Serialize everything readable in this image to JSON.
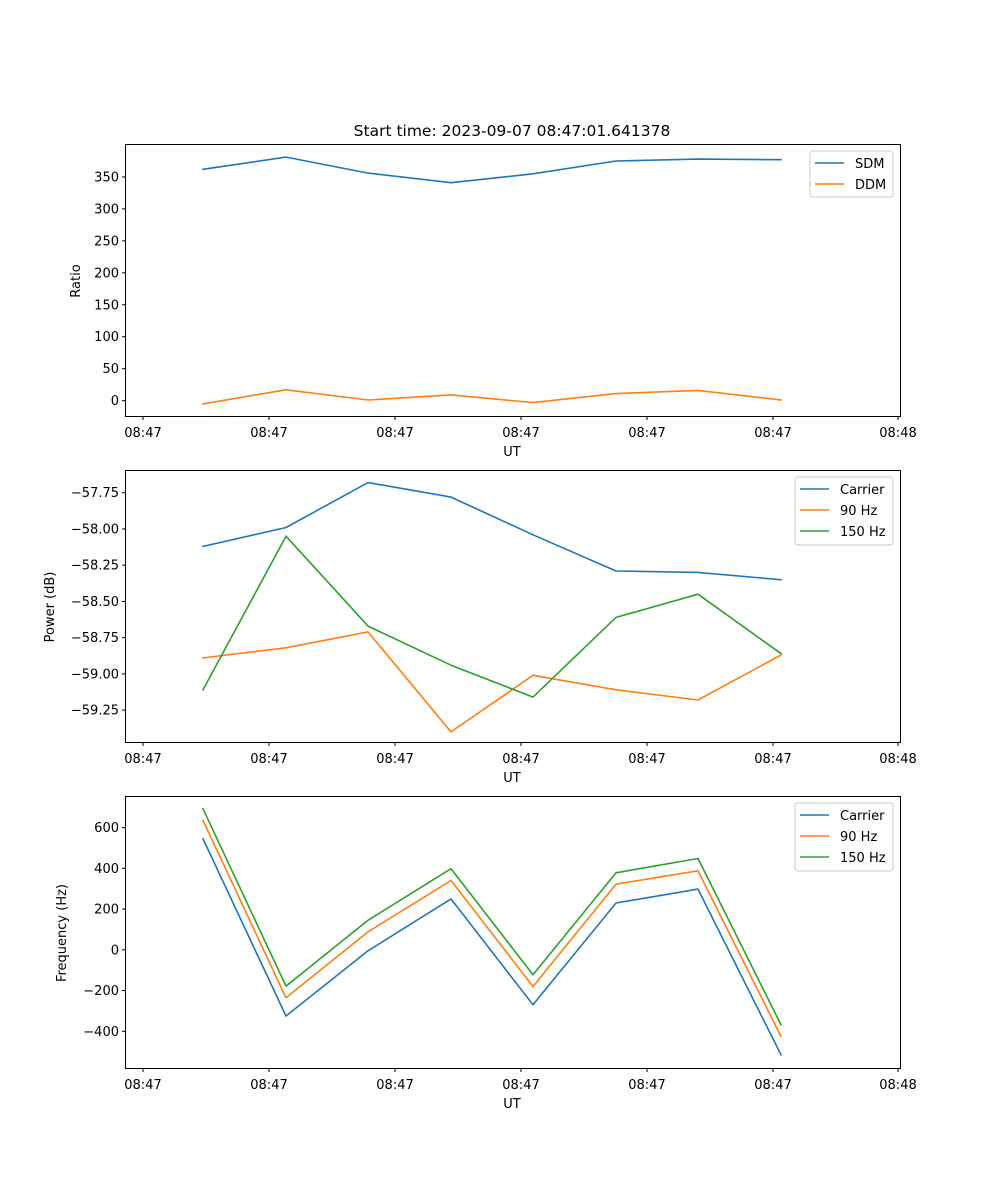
{
  "chart_data": [
    {
      "type": "line",
      "title": "Start time: 2023-09-07 08:47:01.641378",
      "xlabel": "UT",
      "ylabel": "Ratio",
      "x_ticks": [
        "08:47",
        "08:47",
        "08:47",
        "08:47",
        "08:47",
        "08:47",
        "08:48"
      ],
      "y_ticks": [
        0,
        50,
        100,
        150,
        200,
        250,
        300,
        350
      ],
      "ylim": [
        -24,
        400
      ],
      "legend_position": "upper-right",
      "series": [
        {
          "name": "SDM",
          "color": "#1f77b4",
          "values": [
            362,
            381,
            356,
            341,
            355,
            375,
            378,
            377
          ]
        },
        {
          "name": "DDM",
          "color": "#ff7f0e",
          "values": [
            -5,
            17,
            1,
            9,
            -3,
            11,
            16,
            1
          ]
        }
      ]
    },
    {
      "type": "line",
      "title": "",
      "xlabel": "UT",
      "ylabel": "Power (dB)",
      "x_ticks": [
        "08:47",
        "08:47",
        "08:47",
        "08:47",
        "08:47",
        "08:47",
        "08:48"
      ],
      "y_ticks": [
        "-57.75",
        "-58.00",
        "-58.25",
        "-58.50",
        "-58.75",
        "-59.00",
        "-59.25"
      ],
      "y_tick_values": [
        -57.75,
        -58.0,
        -58.25,
        -58.5,
        -58.75,
        -59.0,
        -59.25
      ],
      "ylim": [
        -59.47,
        -57.6
      ],
      "legend_position": "upper-right",
      "series": [
        {
          "name": "Carrier",
          "color": "#1f77b4",
          "values": [
            -58.12,
            -57.99,
            -57.68,
            -57.78,
            -58.04,
            -58.29,
            -58.3,
            -58.35
          ]
        },
        {
          "name": "90 Hz",
          "color": "#ff7f0e",
          "values": [
            -58.89,
            -58.82,
            -58.71,
            -59.4,
            -59.01,
            -59.11,
            -59.18,
            -58.87
          ]
        },
        {
          "name": "150 Hz",
          "color": "#2ca02c",
          "values": [
            -59.11,
            -58.05,
            -58.67,
            -58.94,
            -59.16,
            -58.61,
            -58.45,
            -58.86
          ]
        }
      ]
    },
    {
      "type": "line",
      "title": "",
      "xlabel": "UT",
      "ylabel": "Frequency (Hz)",
      "x_ticks": [
        "08:47",
        "08:47",
        "08:47",
        "08:47",
        "08:47",
        "08:47",
        "08:48"
      ],
      "y_ticks": [
        "600",
        "400",
        "200",
        "0",
        "−200",
        "−400"
      ],
      "y_tick_values": [
        600,
        400,
        200,
        0,
        -200,
        -400
      ],
      "ylim": [
        -580,
        750
      ],
      "legend_position": "upper-right",
      "series": [
        {
          "name": "Carrier",
          "color": "#1f77b4",
          "values": [
            545,
            -325,
            -5,
            250,
            -270,
            230,
            298,
            -515
          ]
        },
        {
          "name": "90 Hz",
          "color": "#ff7f0e",
          "values": [
            635,
            -235,
            88,
            340,
            -180,
            322,
            388,
            -425
          ]
        },
        {
          "name": "150 Hz",
          "color": "#2ca02c",
          "values": [
            692,
            -178,
            145,
            398,
            -122,
            378,
            448,
            -368
          ]
        }
      ]
    }
  ]
}
